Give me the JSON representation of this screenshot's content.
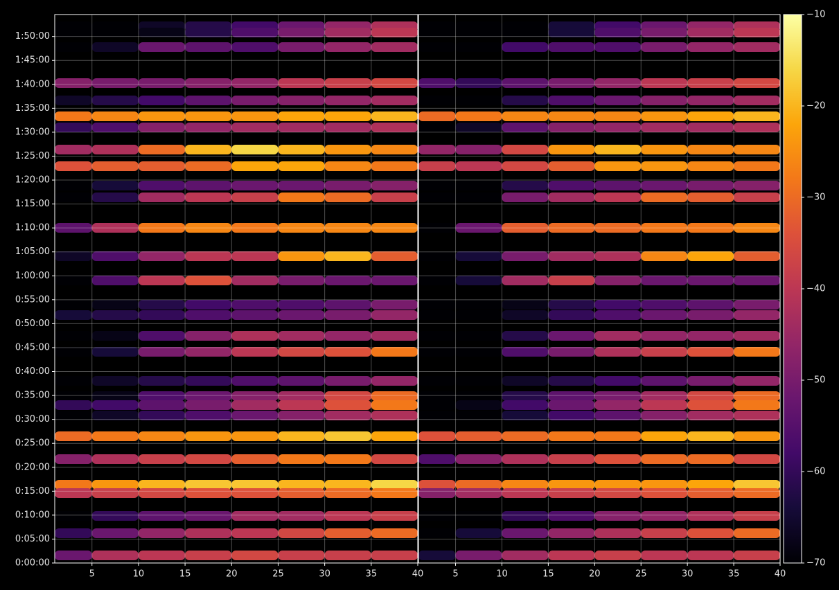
{
  "chart_data": [
    {
      "type": "heatmap",
      "x_bins": [
        1,
        5,
        10,
        15,
        20,
        25,
        30,
        35,
        40
      ],
      "y": [
        6727,
        6649,
        6467,
        6016,
        5799,
        5599,
        5460,
        5182,
        4974,
        4731,
        4583,
        4201,
        3845,
        3542,
        3238,
        3108,
        2847,
        2648,
        2283,
        2092,
        1979,
        1849,
        1589,
        1302,
        981,
        877,
        590,
        373,
        95
      ],
      "values": [
        [
          -70,
          -70,
          -66,
          -62,
          -58,
          -52,
          -46,
          -42
        ],
        [
          -70,
          -70,
          -68,
          -62,
          -56,
          -50,
          -44,
          -40
        ],
        [
          -70,
          -66,
          -52,
          -54,
          -56,
          -50,
          -46,
          -44
        ],
        [
          -48,
          -50,
          -50,
          -48,
          -46,
          -40,
          -38,
          -36
        ],
        [
          -66,
          -62,
          -58,
          -54,
          -50,
          -48,
          -46,
          -44
        ],
        [
          -28,
          -26,
          -24,
          -24,
          -24,
          -22,
          -22,
          -20
        ],
        [
          -60,
          -56,
          -48,
          -46,
          -44,
          -44,
          -44,
          -42
        ],
        [
          -44,
          -42,
          -30,
          -20,
          -16,
          -20,
          -24,
          -26
        ],
        [
          -34,
          -32,
          -32,
          -30,
          -22,
          -22,
          -26,
          -28
        ],
        [
          -70,
          -64,
          -56,
          -54,
          -52,
          -52,
          -50,
          -48
        ],
        [
          -70,
          -62,
          -44,
          -40,
          -38,
          -28,
          -30,
          -38
        ],
        [
          -54,
          -42,
          -28,
          -26,
          -28,
          -26,
          -26,
          -26
        ],
        [
          -66,
          -56,
          -46,
          -40,
          -40,
          -24,
          -20,
          -32
        ],
        [
          -70,
          -56,
          -40,
          -34,
          -44,
          -50,
          -52,
          -52
        ],
        [
          -70,
          -68,
          -62,
          -58,
          -56,
          -56,
          -54,
          -50
        ],
        [
          -64,
          -62,
          -60,
          -56,
          -54,
          -52,
          -50,
          -46
        ],
        [
          -70,
          -68,
          -56,
          -48,
          -42,
          -44,
          -46,
          -44
        ],
        [
          -70,
          -64,
          -50,
          -46,
          -40,
          -36,
          -34,
          -28
        ],
        [
          -70,
          -66,
          -62,
          -60,
          -56,
          -54,
          -50,
          -46
        ],
        [
          -70,
          -68,
          -56,
          -52,
          -48,
          -44,
          -36,
          -30
        ],
        [
          -60,
          -58,
          -54,
          -50,
          -44,
          -40,
          -34,
          -28
        ],
        [
          -70,
          -66,
          -60,
          -56,
          -52,
          -48,
          -44,
          -42
        ],
        [
          -30,
          -28,
          -26,
          -24,
          -24,
          -20,
          -18,
          -22
        ],
        [
          -48,
          -42,
          -38,
          -36,
          -32,
          -28,
          -28,
          -36
        ],
        [
          -28,
          -24,
          -20,
          -18,
          -18,
          -20,
          -20,
          -16
        ],
        [
          -40,
          -38,
          -36,
          -34,
          -34,
          -32,
          -30,
          -28
        ],
        [
          -70,
          -60,
          -54,
          -52,
          -44,
          -44,
          -40,
          -38
        ],
        [
          -60,
          -52,
          -46,
          -42,
          -40,
          -36,
          -32,
          -30
        ],
        [
          -52,
          -42,
          -40,
          -38,
          -36,
          -38,
          -38,
          -38
        ]
      ],
      "xlim": [
        1,
        40
      ],
      "ylim": [
        0,
        6875
      ],
      "xticks": [
        5,
        10,
        15,
        20,
        25,
        30,
        35,
        40
      ],
      "yticks": [
        {
          "value": 0,
          "label": "0:00:00"
        },
        {
          "value": 300,
          "label": "0:05:00"
        },
        {
          "value": 600,
          "label": "0:10:00"
        },
        {
          "value": 900,
          "label": "0:15:00"
        },
        {
          "value": 1200,
          "label": "0:20:00"
        },
        {
          "value": 1500,
          "label": "0:25:00"
        },
        {
          "value": 1800,
          "label": "0:30:00"
        },
        {
          "value": 2100,
          "label": "0:35:00"
        },
        {
          "value": 2400,
          "label": "0:40:00"
        },
        {
          "value": 2700,
          "label": "0:45:00"
        },
        {
          "value": 3000,
          "label": "0:50:00"
        },
        {
          "value": 3300,
          "label": "0:55:00"
        },
        {
          "value": 3600,
          "label": "1:00:00"
        },
        {
          "value": 3900,
          "label": "1:05:00"
        },
        {
          "value": 4200,
          "label": "1:10:00"
        },
        {
          "value": 4500,
          "label": "1:15:00"
        },
        {
          "value": 4800,
          "label": "1:20:00"
        },
        {
          "value": 5100,
          "label": "1:25:00"
        },
        {
          "value": 5400,
          "label": "1:30:00"
        },
        {
          "value": 5700,
          "label": "1:35:00"
        },
        {
          "value": 6000,
          "label": "1:40:00"
        },
        {
          "value": 6300,
          "label": "1:45:00"
        },
        {
          "value": 6600,
          "label": "1:50:00"
        }
      ],
      "grid": true,
      "colormap": "inferno",
      "clim": [
        -70,
        -10
      ]
    },
    {
      "type": "heatmap",
      "x_bins": [
        1,
        5,
        10,
        15,
        20,
        25,
        30,
        35,
        40
      ],
      "y": [
        6727,
        6649,
        6467,
        6016,
        5799,
        5599,
        5460,
        5182,
        4974,
        4731,
        4583,
        4201,
        3845,
        3542,
        3238,
        3108,
        2847,
        2648,
        2283,
        2092,
        1979,
        1849,
        1589,
        1302,
        981,
        877,
        590,
        373,
        95
      ],
      "values": [
        [
          -70,
          -70,
          -70,
          -64,
          -58,
          -52,
          -46,
          -42
        ],
        [
          -70,
          -70,
          -70,
          -64,
          -56,
          -50,
          -44,
          -40
        ],
        [
          -70,
          -70,
          -58,
          -56,
          -56,
          -50,
          -46,
          -44
        ],
        [
          -56,
          -60,
          -54,
          -50,
          -46,
          -40,
          -38,
          -36
        ],
        [
          -70,
          -70,
          -62,
          -56,
          -52,
          -48,
          -46,
          -44
        ],
        [
          -30,
          -28,
          -26,
          -26,
          -26,
          -24,
          -22,
          -20
        ],
        [
          -70,
          -66,
          -54,
          -48,
          -46,
          -44,
          -44,
          -42
        ],
        [
          -46,
          -48,
          -36,
          -24,
          -20,
          -24,
          -26,
          -26
        ],
        [
          -38,
          -40,
          -36,
          -32,
          -24,
          -24,
          -26,
          -28
        ],
        [
          -70,
          -70,
          -62,
          -56,
          -54,
          -52,
          -50,
          -48
        ],
        [
          -70,
          -70,
          -50,
          -44,
          -40,
          -30,
          -32,
          -38
        ],
        [
          -70,
          -52,
          -32,
          -30,
          -30,
          -28,
          -28,
          -26
        ],
        [
          -70,
          -64,
          -50,
          -44,
          -42,
          -26,
          -22,
          -32
        ],
        [
          -70,
          -64,
          -44,
          -38,
          -48,
          -52,
          -52,
          -52
        ],
        [
          -70,
          -70,
          -68,
          -62,
          -58,
          -56,
          -54,
          -50
        ],
        [
          -70,
          -70,
          -66,
          -60,
          -56,
          -52,
          -50,
          -46
        ],
        [
          -70,
          -70,
          -62,
          -52,
          -44,
          -46,
          -46,
          -44
        ],
        [
          -70,
          -70,
          -56,
          -50,
          -42,
          -38,
          -34,
          -28
        ],
        [
          -70,
          -70,
          -66,
          -62,
          -58,
          -54,
          -50,
          -46
        ],
        [
          -70,
          -70,
          -62,
          -54,
          -50,
          -44,
          -36,
          -30
        ],
        [
          -70,
          -68,
          -58,
          -52,
          -46,
          -40,
          -34,
          -28
        ],
        [
          -70,
          -70,
          -64,
          -58,
          -54,
          -48,
          -44,
          -42
        ],
        [
          -34,
          -32,
          -30,
          -28,
          -28,
          -22,
          -20,
          -24
        ],
        [
          -56,
          -48,
          -42,
          -38,
          -34,
          -30,
          -30,
          -36
        ],
        [
          -34,
          -30,
          -26,
          -24,
          -24,
          -24,
          -22,
          -18
        ],
        [
          -48,
          -44,
          -40,
          -38,
          -36,
          -34,
          -32,
          -30
        ],
        [
          -70,
          -70,
          -60,
          -56,
          -48,
          -46,
          -42,
          -38
        ],
        [
          -70,
          -64,
          -52,
          -46,
          -42,
          -38,
          -34,
          -30
        ],
        [
          -64,
          -50,
          -44,
          -40,
          -38,
          -40,
          -40,
          -38
        ]
      ],
      "xlim": [
        1,
        40
      ],
      "ylim": [
        0,
        6875
      ],
      "xticks": [
        5,
        10,
        15,
        20,
        25,
        30,
        35,
        40
      ],
      "grid": true,
      "colormap": "inferno",
      "clim": [
        -70,
        -10
      ],
      "colorbar_ticks": [
        {
          "value": -70,
          "label": "−70"
        },
        {
          "value": -60,
          "label": "−60"
        },
        {
          "value": -50,
          "label": "−50"
        },
        {
          "value": -40,
          "label": "−40"
        },
        {
          "value": -30,
          "label": "−30"
        },
        {
          "value": -20,
          "label": "−20"
        },
        {
          "value": -10,
          "label": "−10"
        }
      ]
    }
  ]
}
